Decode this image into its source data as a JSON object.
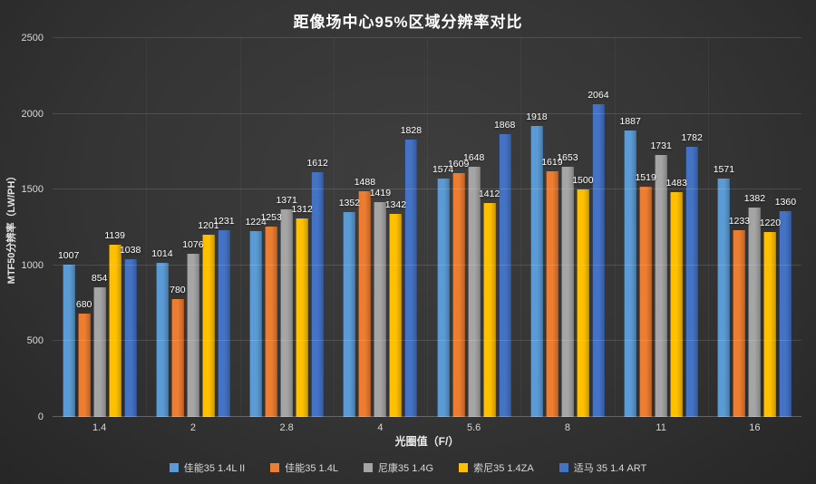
{
  "title": "距像场中心95%区域分辨率对比",
  "axes": {
    "y_title": "MTF50分辨率（LW/PH）",
    "x_title": "光圈值（F/）"
  },
  "colors": {
    "background": "#343434",
    "text": "#ffffff",
    "tick_text": "#d8d8d8",
    "gridline": "#4a4a4a"
  },
  "chart_data": {
    "type": "bar",
    "title": "距像场中心95%区域分辨率对比",
    "xlabel": "光圈值（F/）",
    "ylabel": "MTF50分辨率（LW/PH）",
    "ylim": [
      0,
      2500
    ],
    "yticks": [
      0,
      500,
      1000,
      1500,
      2000,
      2500
    ],
    "grid": true,
    "legend_position": "bottom",
    "data_labels": true,
    "categories": [
      "1.4",
      "2",
      "2.8",
      "4",
      "5.6",
      "8",
      "11",
      "16"
    ],
    "series": [
      {
        "name": "佳能35 1.4L II",
        "color": "#5B9BD5",
        "values": [
          1007,
          1014,
          1224,
          1352,
          1574,
          1918,
          1887,
          1571
        ]
      },
      {
        "name": "佳能35 1.4L",
        "color": "#ED7D31",
        "values": [
          680,
          780,
          1253,
          1488,
          1609,
          1619,
          1519,
          1233
        ]
      },
      {
        "name": "尼康35 1.4G",
        "color": "#A5A5A5",
        "values": [
          854,
          1076,
          1371,
          1419,
          1648,
          1653,
          1731,
          1382
        ]
      },
      {
        "name": "索尼35 1.4ZA",
        "color": "#FFC000",
        "values": [
          1139,
          1201,
          1312,
          1342,
          1412,
          1500,
          1483,
          1220
        ]
      },
      {
        "name": "适马 35 1.4 ART",
        "color": "#4472C4",
        "values": [
          1038,
          1231,
          1612,
          1828,
          1868,
          2064,
          1782,
          1360
        ]
      }
    ]
  }
}
